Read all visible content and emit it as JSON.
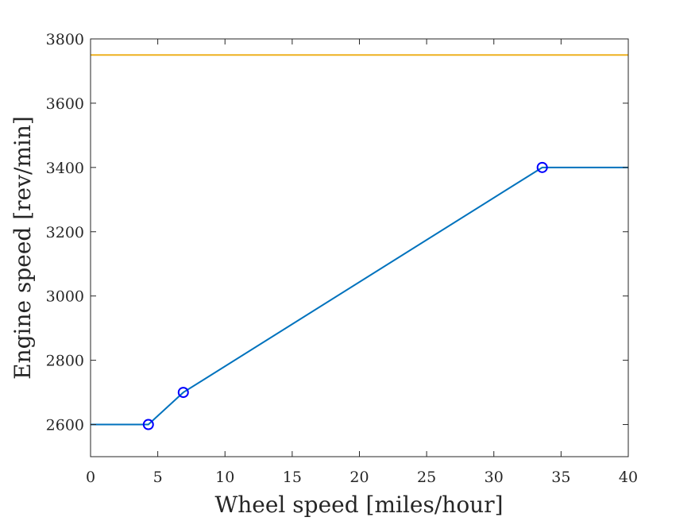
{
  "chart_data": {
    "type": "line",
    "title": "",
    "xlabel": "Wheel speed [miles/hour]",
    "ylabel": "Engine speed [rev/min]",
    "xlim": [
      0,
      40
    ],
    "ylim": [
      2500,
      3800
    ],
    "xticks": [
      0,
      5,
      10,
      15,
      20,
      25,
      30,
      35,
      40
    ],
    "yticks": [
      2600,
      2800,
      3000,
      3200,
      3400,
      3600,
      3800
    ],
    "grid": false,
    "series": [
      {
        "color": "#0072BD",
        "x": [
          0,
          4.3,
          6.9,
          33.6,
          40
        ],
        "y": [
          2600,
          2600,
          2700,
          3400,
          3400
        ],
        "markers": {
          "x": [
            4.3,
            6.9,
            33.6
          ],
          "y": [
            2600,
            2700,
            3400
          ],
          "shape": "circle",
          "color": "#0000FF"
        }
      },
      {
        "color": "#EDB120",
        "x": [
          0,
          40
        ],
        "y": [
          3750,
          3750
        ]
      }
    ]
  }
}
